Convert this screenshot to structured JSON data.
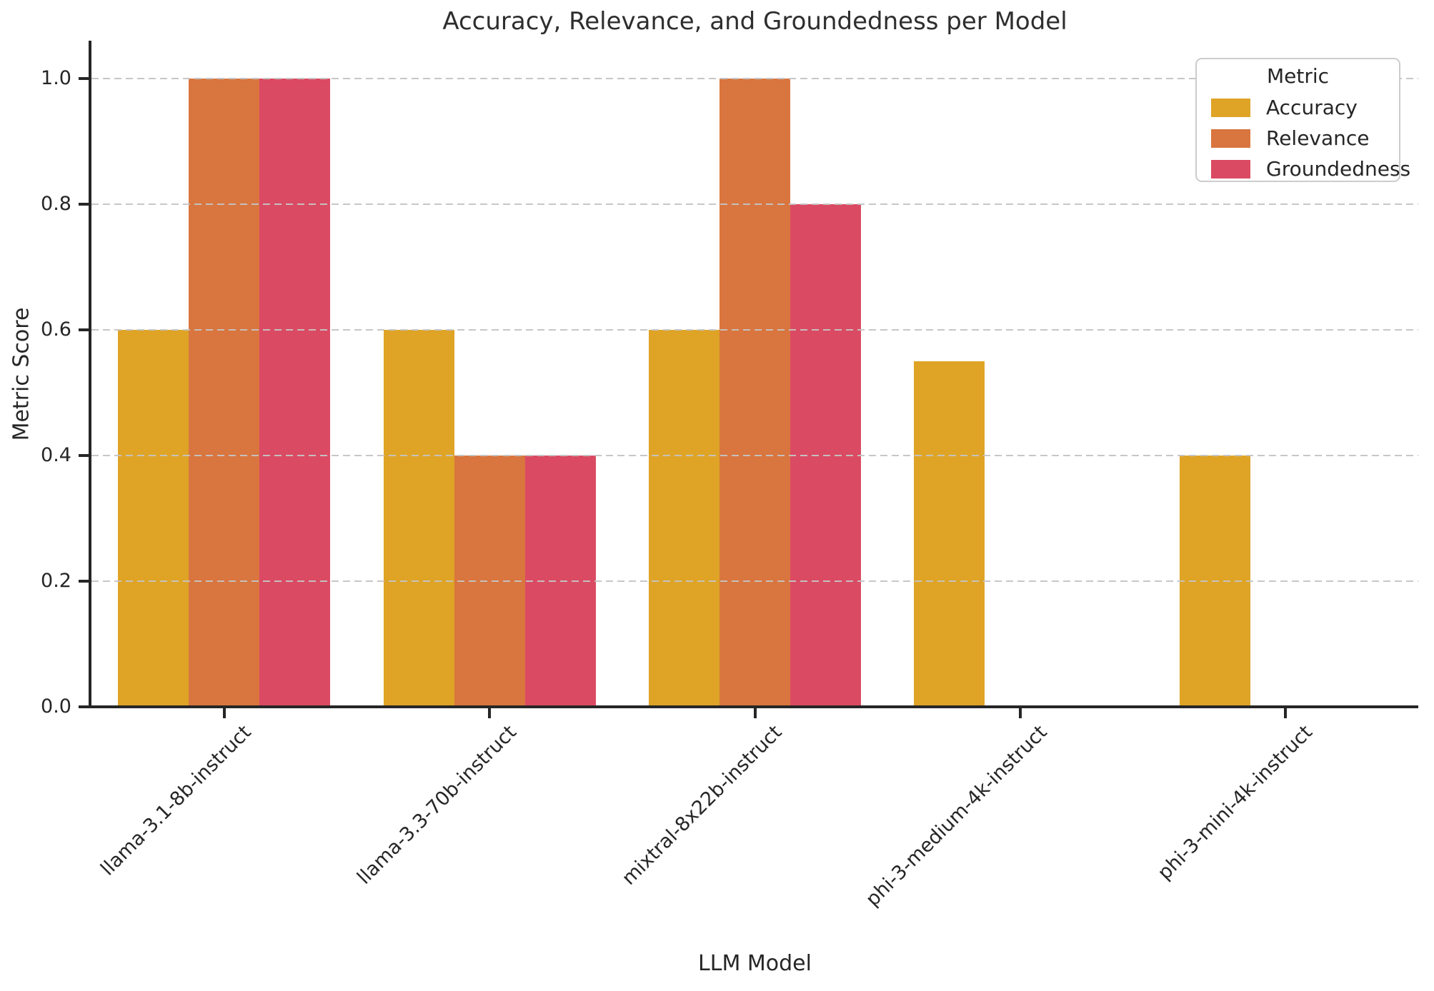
{
  "chart_data": {
    "type": "bar",
    "title": "Accuracy, Relevance, and Groundedness per Model",
    "xlabel": "LLM Model",
    "ylabel": "Metric Score",
    "categories": [
      "llama-3.1-8b-instruct",
      "llama-3.3-70b-instruct",
      "mixtral-8x22b-instruct",
      "phi-3-medium-4k-instruct",
      "phi-3-mini-4k-instruct"
    ],
    "series": [
      {
        "name": "Accuracy",
        "color": "#dfa426",
        "values": [
          0.6,
          0.6,
          0.6,
          0.55,
          0.4
        ]
      },
      {
        "name": "Relevance",
        "color": "#d9753e",
        "values": [
          1.0,
          0.4,
          1.0,
          0.0,
          0.0
        ]
      },
      {
        "name": "Groundedness",
        "color": "#db4a63",
        "values": [
          1.0,
          0.4,
          0.8,
          0.0,
          0.0
        ]
      }
    ],
    "yticks": [
      0.0,
      0.2,
      0.4,
      0.6,
      0.8,
      1.0
    ],
    "ylim": [
      0,
      1.06
    ],
    "grid": "horizontal-dashed",
    "bar_group_width_fraction": 0.8,
    "legend": {
      "title": "Metric",
      "position": "upper right"
    }
  },
  "colors": {
    "text": "#262626",
    "spine": "#262626",
    "grid": "#c4c4c4",
    "legend_border": "#cccccc",
    "background": "#ffffff"
  }
}
